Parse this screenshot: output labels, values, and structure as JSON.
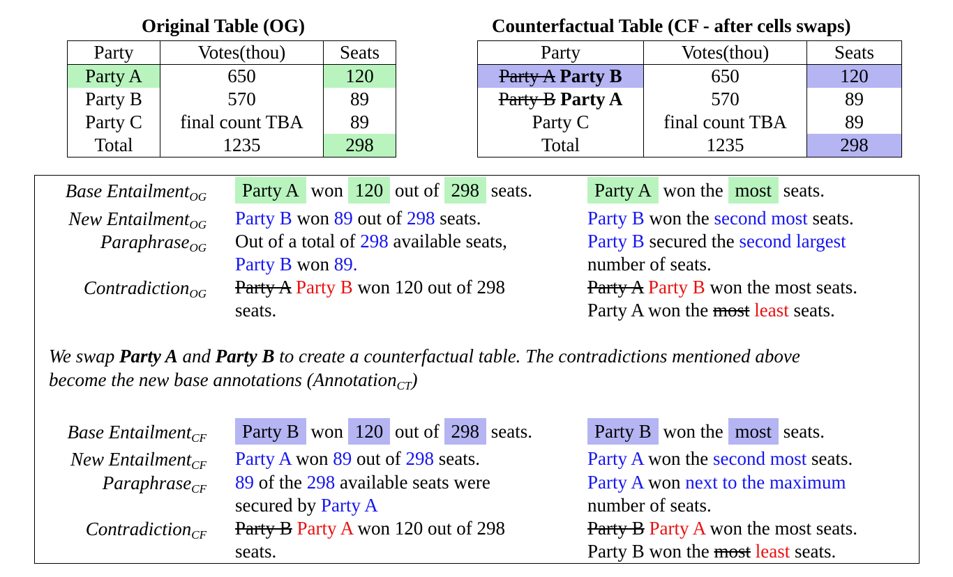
{
  "og_table": {
    "title": "Original Table (OG)",
    "headers": [
      "Party",
      "Votes(thou)",
      "Seats"
    ],
    "rows": [
      [
        "Party A",
        "650",
        "120"
      ],
      [
        "Party B",
        "570",
        "89"
      ],
      [
        "Party C",
        "final count TBA",
        "89"
      ],
      [
        "Total",
        "1235",
        "298"
      ]
    ]
  },
  "cf_table": {
    "title": "Counterfactual Table (CF - after cells swaps)",
    "headers": [
      "Party",
      "Votes(thou)",
      "Seats"
    ],
    "rows": [
      {
        "old": "Party A",
        "new": "Party B",
        "votes": "650",
        "seats": "120"
      },
      {
        "old": "Party B",
        "new": "Party A",
        "votes": "570",
        "seats": "89"
      },
      {
        "party": "Party C",
        "votes": "final count TBA",
        "seats": "89"
      },
      {
        "party": "Total",
        "votes": "1235",
        "seats": "298"
      }
    ]
  },
  "labels": {
    "base_og": "Base Entailment",
    "new_og": "New Entailment",
    "para_og": "Paraphrase",
    "contra_og": "Contradiction",
    "og_sub": "OG",
    "base_cf": "Base Entailment",
    "new_cf": "New Entailment",
    "para_cf": "Paraphrase",
    "contra_cf": "Contradiction",
    "cf_sub": "CF"
  },
  "words": {
    "party_a": "Party A",
    "party_b": "Party B",
    "won": "won",
    "won_the": "won the",
    "out_of": "out of",
    "seats_end": "seats.",
    "v120": "120",
    "v298": "298",
    "v89": "89",
    "most": "most",
    "second_most": "second most"
  },
  "og_sentences": {
    "para_l1_pre": "Out of a total of",
    "para_l1_post": "available seats,",
    "para_l2_mid": "won",
    "para_l2_num": "89.",
    "para_r_mid": "secured the",
    "para_r_hl": "second largest",
    "para_r_l2": "number of seats.",
    "contra_l_tail": "won 120 out of 298",
    "contra_l_l2": "seats.",
    "contra_r_tail": "won the most seats.",
    "contra_r2_pre": "Party A won the",
    "contra_r2_old": "most",
    "contra_r2_new": "least",
    "contra_r2_post": "seats."
  },
  "note": {
    "p1": "We swap",
    "b1": "Party A",
    "p2": "and",
    "b2": "Party B",
    "p3": "to create a counterfactual table. The contradictions mentioned above",
    "l2": "become the new base annotations (Annotation",
    "sub": "CT",
    "close": ")"
  },
  "cf_sentences": {
    "para_l1_mid": "of the",
    "para_l1_post": "available seats were",
    "para_l2_pre": "secured by",
    "para_r_hl": "next to the maximum",
    "para_r_l2": "number of seats.",
    "contra_l_tail": "won 120 out of 298",
    "contra_l_l2": "seats.",
    "contra_r_tail": "won the most seats.",
    "contra_r2_pre": "Party B won the",
    "contra_r2_old": "most",
    "contra_r2_new": "least",
    "contra_r2_post": "seats."
  },
  "colors": {
    "highlight_green": "#b9f4bf",
    "highlight_blue": "#b5b5f3",
    "text_blue": "#1515ee",
    "text_red": "#e81010"
  }
}
